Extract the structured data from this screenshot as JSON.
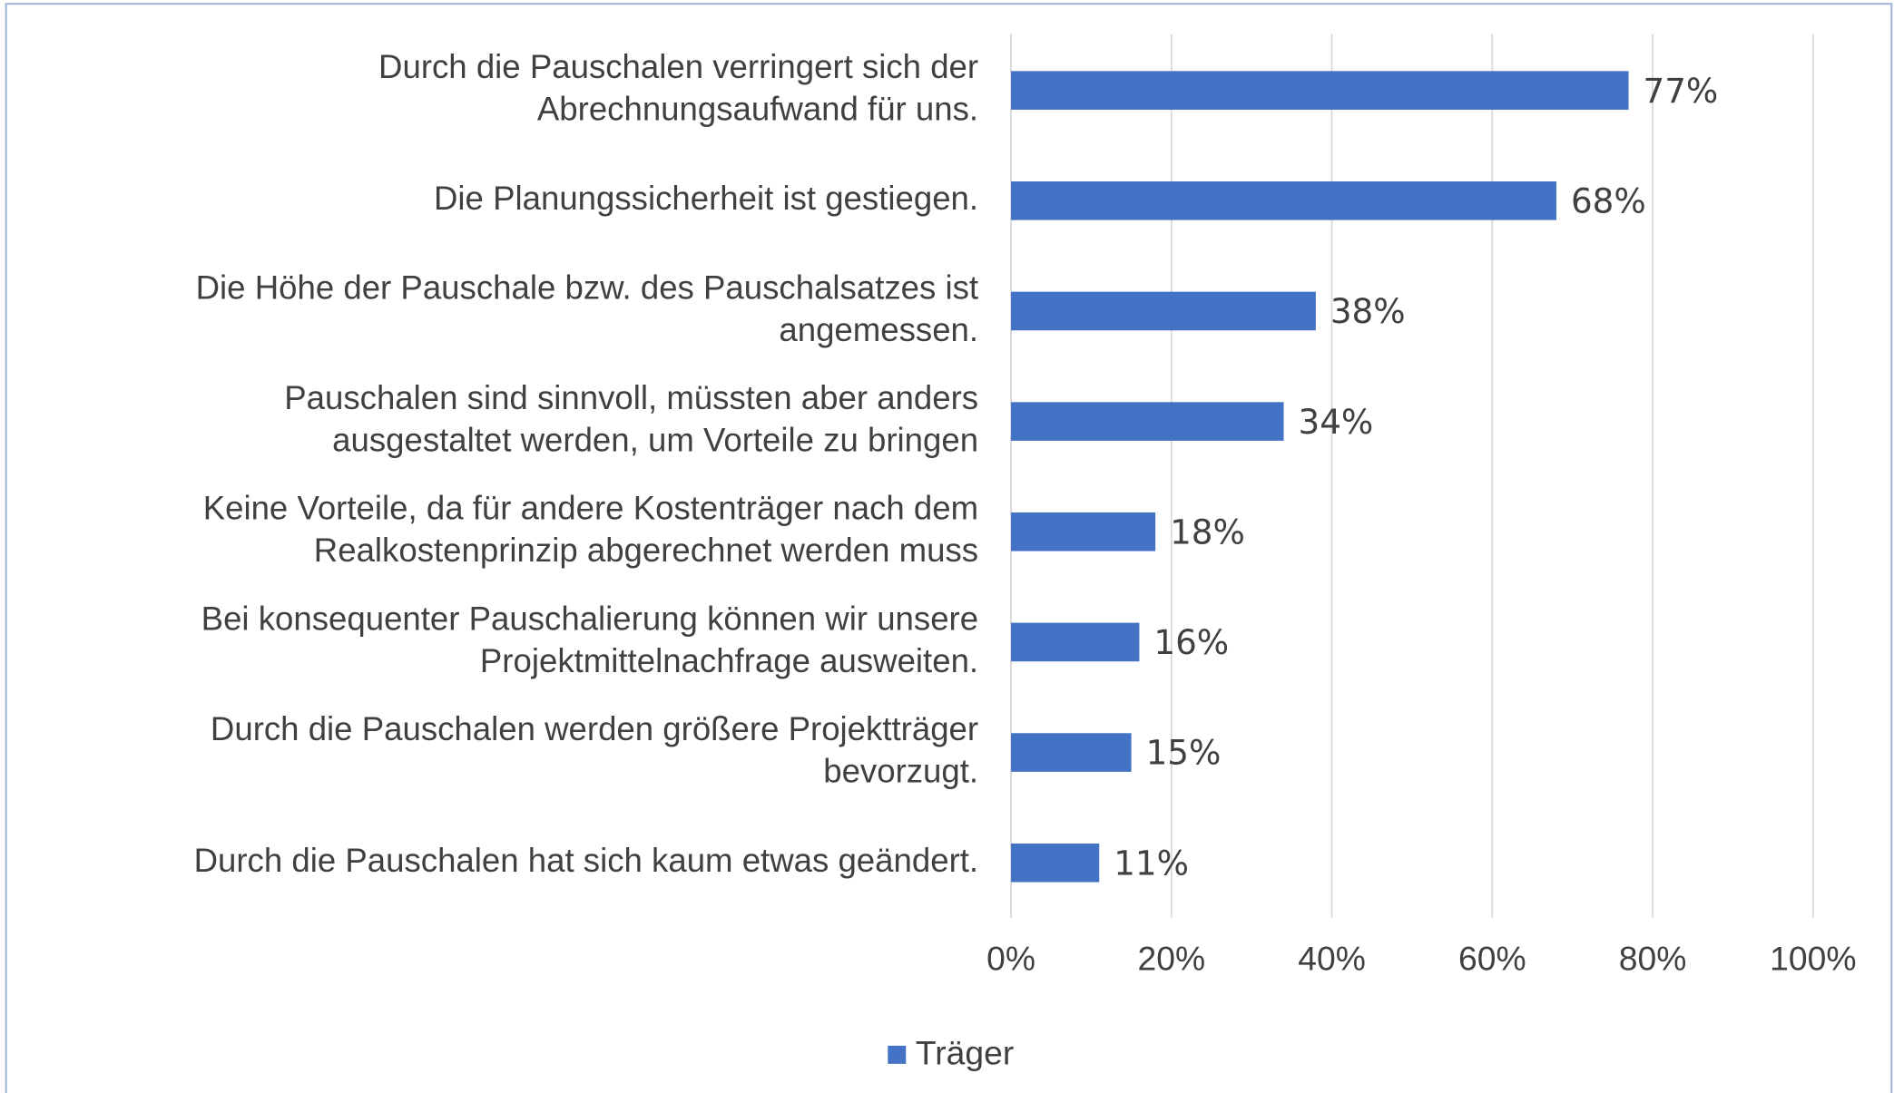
{
  "chart_data": {
    "type": "bar",
    "orientation": "horizontal",
    "categories": [
      [
        "Durch die Pauschalen verringert sich der",
        "Abrechnungsaufwand für uns."
      ],
      [
        "Die Planungssicherheit ist gestiegen."
      ],
      [
        "Die Höhe der Pauschale bzw. des Pauschalsatzes ist",
        "angemessen."
      ],
      [
        "Pauschalen sind sinnvoll, müssten aber anders",
        "ausgestaltet werden, um Vorteile zu bringen"
      ],
      [
        "Keine Vorteile, da für andere Kostenträger nach dem",
        "Realkostenprinzip abgerechnet werden muss"
      ],
      [
        "Bei konsequenter Pauschalierung können wir unsere",
        "Projektmittelnachfrage ausweiten."
      ],
      [
        "Durch die Pauschalen werden größere Projektträger",
        "bevorzugt."
      ],
      [
        "Durch die Pauschalen hat sich kaum etwas geändert."
      ]
    ],
    "series": [
      {
        "name": "Träger",
        "color": "#4472c4",
        "values": [
          77,
          68,
          38,
          34,
          18,
          16,
          15,
          11
        ],
        "value_labels": [
          "77%",
          "68%",
          "38%",
          "34%",
          "18%",
          "16%",
          "15%",
          "11%"
        ]
      }
    ],
    "xlim": [
      0,
      100
    ],
    "xticks": [
      {
        "value": 0,
        "label": "0%"
      },
      {
        "value": 20,
        "label": "20%"
      },
      {
        "value": 40,
        "label": "40%"
      },
      {
        "value": 60,
        "label": "60%"
      },
      {
        "value": 80,
        "label": "80%"
      },
      {
        "value": 100,
        "label": "100%"
      }
    ],
    "grid": true,
    "legend": "bottom"
  }
}
